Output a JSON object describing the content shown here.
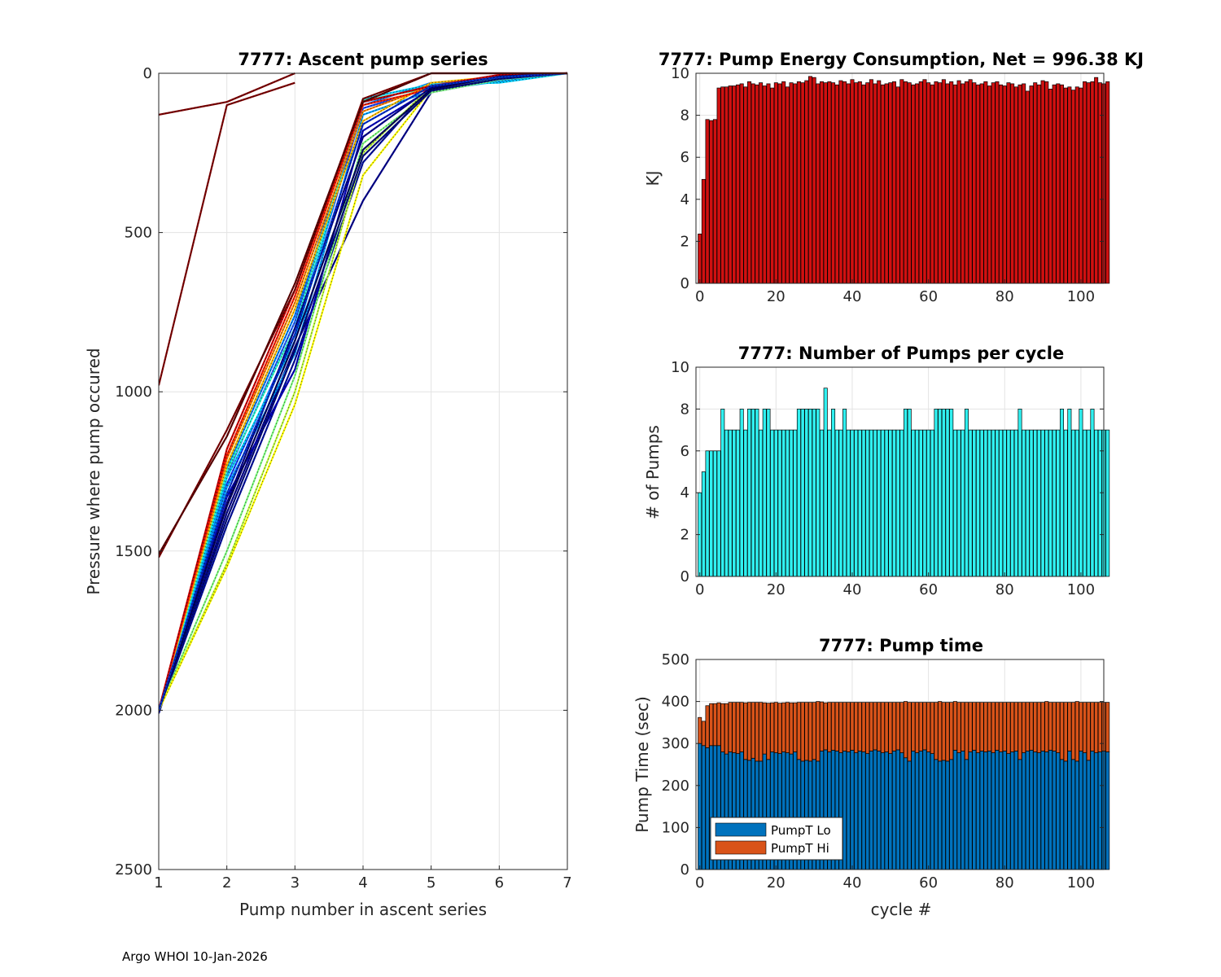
{
  "footer": "Argo WHOI 10-Jan-2026",
  "colors": {
    "energy_bar": "#d01010",
    "pumps_bar": "#30f0f0",
    "pumpt_lo": "#0072bd",
    "pumpt_hi": "#d95319",
    "grid": "#e3e3e3"
  },
  "chart_data": [
    {
      "id": "ascent",
      "type": "line",
      "title": "7777: Ascent pump series",
      "xlabel": "Pump number in ascent series",
      "ylabel": "Pressure where pump occured",
      "xlim": [
        1,
        7
      ],
      "ylim": [
        0,
        2500
      ],
      "y_reversed": true,
      "xticks": [
        1,
        2,
        3,
        4,
        5,
        6,
        7
      ],
      "yticks": [
        0,
        500,
        1000,
        1500,
        2000,
        2500
      ],
      "series": [
        {
          "color": "#00008f",
          "x": [
            1,
            2,
            3,
            4,
            5,
            6,
            7
          ],
          "y": [
            2010,
            1380,
            860,
            400,
            60,
            20,
            0
          ]
        },
        {
          "color": "#000f9f",
          "x": [
            1,
            2,
            3,
            4,
            5,
            6,
            7
          ],
          "y": [
            2005,
            1420,
            900,
            280,
            40,
            15,
            0
          ]
        },
        {
          "color": "#0000c0",
          "x": [
            1,
            2,
            3,
            4,
            5,
            6,
            7
          ],
          "y": [
            2000,
            1330,
            930,
            180,
            50,
            10,
            0
          ]
        },
        {
          "color": "#1040ff",
          "x": [
            1,
            2,
            3,
            4,
            5,
            6,
            7
          ],
          "y": [
            2000,
            1290,
            820,
            110,
            45,
            10,
            0
          ]
        },
        {
          "color": "#2060ff",
          "x": [
            1,
            2,
            3,
            4,
            5,
            6,
            7
          ],
          "y": [
            2000,
            1260,
            780,
            90,
            40,
            5,
            0
          ]
        },
        {
          "color": "#0080ff",
          "x": [
            1,
            2,
            3,
            4,
            5,
            6,
            7
          ],
          "y": [
            2000,
            1240,
            760,
            100,
            30,
            20,
            0
          ]
        },
        {
          "color": "#00a0ff",
          "x": [
            1,
            2,
            3,
            4,
            5,
            6,
            7
          ],
          "y": [
            2000,
            1300,
            880,
            130,
            55,
            25,
            0
          ]
        },
        {
          "color": "#00d0ff",
          "x": [
            1,
            2,
            3,
            4,
            5,
            6,
            7
          ],
          "y": [
            2000,
            1270,
            840,
            80,
            35,
            30,
            0
          ]
        },
        {
          "color": "#30ffd0",
          "x": [
            1,
            2,
            3,
            4,
            5,
            6,
            7
          ],
          "y": [
            2000,
            1250,
            800,
            85,
            45,
            15,
            0
          ]
        },
        {
          "color": "#80ff80",
          "x": [
            1,
            2,
            3,
            4,
            5,
            6,
            7
          ],
          "y": [
            2000,
            1500,
            950,
            220,
            60,
            20,
            0
          ]
        },
        {
          "color": "#c0ff40",
          "x": [
            1,
            2,
            3,
            4,
            5,
            6,
            7
          ],
          "y": [
            2000,
            1540,
            1000,
            250,
            40,
            10,
            0
          ]
        },
        {
          "color": "#ffff00",
          "x": [
            1,
            2,
            3,
            4,
            5,
            6,
            7
          ],
          "y": [
            2000,
            1550,
            1040,
            320,
            50,
            10,
            0
          ]
        },
        {
          "color": "#ffc000",
          "x": [
            1,
            2,
            3,
            4,
            5,
            6,
            7
          ],
          "y": [
            2000,
            1230,
            740,
            150,
            30,
            10,
            0
          ]
        },
        {
          "color": "#ff8000",
          "x": [
            1,
            2,
            3,
            4,
            5,
            6,
            7
          ],
          "y": [
            2000,
            1210,
            720,
            120,
            40,
            10,
            0
          ]
        },
        {
          "color": "#ff2000",
          "x": [
            1,
            2,
            3,
            4,
            5,
            6,
            7
          ],
          "y": [
            2000,
            1200,
            700,
            100,
            50,
            10,
            0
          ]
        },
        {
          "color": "#d00000",
          "x": [
            1,
            2,
            3,
            4,
            5,
            6,
            7
          ],
          "y": [
            2000,
            1180,
            680,
            90,
            40,
            5,
            0
          ]
        },
        {
          "color": "#00008f",
          "x": [
            1,
            2,
            3,
            4,
            5,
            6,
            7
          ],
          "y": [
            2000,
            1350,
            800,
            200,
            45,
            12,
            0
          ]
        },
        {
          "color": "#000a80",
          "x": [
            1,
            2,
            3,
            4,
            5,
            6,
            7
          ],
          "y": [
            2000,
            1400,
            870,
            260,
            55,
            18,
            0
          ]
        },
        {
          "color": "#000060",
          "x": [
            1,
            2,
            3,
            4,
            5,
            6,
            7
          ],
          "y": [
            2000,
            1360,
            840,
            240,
            50,
            10,
            0
          ]
        },
        {
          "color": "#0030d0",
          "x": [
            1,
            2,
            3,
            4,
            5,
            6,
            7
          ],
          "y": [
            2000,
            1320,
            820,
            160,
            40,
            12,
            0
          ]
        },
        {
          "color": "#800000",
          "x": [
            1,
            2,
            3,
            4,
            5,
            6,
            7
          ],
          "y": [
            1520,
            1120,
            680,
            80,
            0,
            0,
            0
          ]
        },
        {
          "color": "#600000",
          "x": [
            1,
            2,
            3,
            4,
            5,
            6,
            7
          ],
          "y": [
            1510,
            1140,
            660,
            90,
            0,
            0,
            0
          ]
        },
        {
          "color": "#800000",
          "x": [
            1,
            2,
            3
          ],
          "y": [
            980,
            100,
            30
          ]
        },
        {
          "color": "#800000",
          "x": [
            1,
            2,
            3
          ],
          "y": [
            130,
            90,
            0
          ]
        }
      ]
    },
    {
      "id": "energy",
      "type": "bar",
      "title": "7777: Pump Energy Consumption,  Net = 996.38 KJ",
      "xlabel": "",
      "ylabel": "KJ",
      "xlim": [
        -1,
        106
      ],
      "ylim": [
        0,
        10
      ],
      "xticks": [
        0,
        20,
        40,
        60,
        80,
        100
      ],
      "yticks": [
        0,
        2,
        4,
        6,
        8,
        10
      ],
      "values": [
        2.35,
        4.95,
        7.8,
        7.75,
        7.8,
        9.3,
        9.35,
        9.35,
        9.4,
        9.4,
        9.45,
        9.5,
        9.35,
        9.6,
        9.5,
        9.45,
        9.55,
        9.4,
        9.5,
        9.3,
        9.55,
        9.5,
        9.6,
        9.35,
        9.55,
        9.5,
        9.6,
        9.55,
        9.65,
        9.85,
        9.8,
        9.5,
        9.6,
        9.55,
        9.6,
        9.55,
        9.45,
        9.65,
        9.6,
        9.5,
        9.7,
        9.55,
        9.6,
        9.45,
        9.55,
        9.7,
        9.5,
        9.65,
        9.45,
        9.5,
        9.55,
        9.6,
        9.35,
        9.7,
        9.6,
        9.55,
        9.45,
        9.5,
        9.6,
        9.7,
        9.55,
        9.45,
        9.6,
        9.55,
        9.7,
        9.5,
        9.6,
        9.45,
        9.65,
        9.5,
        9.6,
        9.7,
        9.55,
        9.45,
        9.5,
        9.6,
        9.4,
        9.55,
        9.6,
        9.45,
        9.4,
        9.55,
        9.5,
        9.35,
        9.45,
        9.5,
        9.15,
        9.4,
        9.55,
        9.45,
        9.65,
        9.6,
        9.25,
        9.45,
        9.5,
        9.45,
        9.3,
        9.35,
        9.2,
        9.35,
        9.3,
        9.6,
        9.55,
        9.6,
        9.8,
        9.55,
        9.5,
        9.6
      ]
    },
    {
      "id": "pumps",
      "type": "bar",
      "title": "7777: Number of Pumps per cycle",
      "xlabel": "",
      "ylabel": "# of Pumps",
      "xlim": [
        -1,
        106
      ],
      "ylim": [
        0,
        10
      ],
      "xticks": [
        0,
        20,
        40,
        60,
        80,
        100
      ],
      "yticks": [
        0,
        2,
        4,
        6,
        8,
        10
      ],
      "values": [
        4,
        5,
        6,
        6,
        6,
        6,
        8,
        7,
        7,
        7,
        7,
        8,
        7,
        8,
        8,
        8,
        7,
        8,
        8,
        7,
        7,
        7,
        7,
        7,
        7,
        7,
        8,
        8,
        8,
        8,
        8,
        8,
        7,
        9,
        7,
        8,
        7,
        7,
        8,
        7,
        7,
        7,
        7,
        7,
        7,
        7,
        7,
        7,
        7,
        7,
        7,
        7,
        7,
        7,
        8,
        8,
        7,
        7,
        7,
        7,
        7,
        7,
        8,
        8,
        8,
        8,
        8,
        7,
        7,
        7,
        8,
        7,
        7,
        7,
        7,
        7,
        7,
        7,
        7,
        7,
        7,
        7,
        7,
        7,
        8,
        7,
        7,
        7,
        7,
        7,
        7,
        7,
        7,
        7,
        7,
        8,
        7,
        8,
        7,
        7,
        8,
        7,
        7,
        8,
        7,
        7,
        7,
        7
      ]
    },
    {
      "id": "pumptime",
      "type": "bar",
      "stacked": true,
      "title": "7777: Pump time",
      "xlabel": "cycle #",
      "ylabel": "Pump Time (sec)",
      "xlim": [
        -1,
        106
      ],
      "ylim": [
        0,
        500
      ],
      "xticks": [
        0,
        20,
        40,
        60,
        80,
        100
      ],
      "yticks": [
        0,
        100,
        200,
        300,
        400,
        500
      ],
      "legend": [
        "PumpT Lo",
        "PumpT Hi"
      ],
      "legend_location": "bottom-left",
      "series": [
        {
          "name": "PumpT Lo",
          "values": [
            300,
            295,
            290,
            295,
            295,
            295,
            280,
            275,
            280,
            278,
            276,
            280,
            262,
            260,
            265,
            258,
            258,
            275,
            262,
            280,
            278,
            276,
            280,
            278,
            275,
            280,
            262,
            258,
            260,
            258,
            262,
            258,
            282,
            285,
            280,
            284,
            282,
            278,
            282,
            280,
            284,
            278,
            282,
            280,
            276,
            282,
            285,
            282,
            278,
            280,
            276,
            282,
            285,
            278,
            266,
            258,
            282,
            278,
            282,
            285,
            280,
            276,
            262,
            258,
            260,
            258,
            262,
            284,
            278,
            282,
            262,
            280,
            284,
            278,
            282,
            280,
            282,
            278,
            284,
            280,
            282,
            276,
            280,
            282,
            262,
            278,
            282,
            284,
            280,
            278,
            282,
            280,
            284,
            282,
            278,
            262,
            258,
            282,
            262,
            258,
            282,
            278,
            260,
            282,
            278,
            280,
            282,
            280
          ]
        },
        {
          "name": "PumpT Hi",
          "values": [
            62,
            58,
            100,
            100,
            100,
            102,
            115,
            120,
            118,
            120,
            122,
            118,
            135,
            138,
            133,
            140,
            140,
            122,
            134,
            117,
            120,
            120,
            117,
            120,
            122,
            117,
            136,
            140,
            138,
            140,
            136,
            142,
            117,
            112,
            118,
            114,
            116,
            120,
            116,
            118,
            114,
            120,
            116,
            118,
            122,
            116,
            113,
            116,
            120,
            118,
            122,
            116,
            113,
            120,
            134,
            140,
            116,
            120,
            116,
            113,
            118,
            122,
            136,
            142,
            138,
            140,
            136,
            116,
            120,
            116,
            136,
            118,
            114,
            120,
            116,
            118,
            116,
            120,
            114,
            118,
            116,
            122,
            118,
            116,
            136,
            120,
            116,
            114,
            118,
            120,
            116,
            120,
            114,
            116,
            120,
            136,
            140,
            116,
            136,
            142,
            116,
            120,
            138,
            116,
            120,
            118,
            116,
            118
          ]
        }
      ]
    }
  ]
}
